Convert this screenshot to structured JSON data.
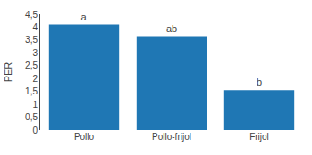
{
  "chart_data": {
    "type": "bar",
    "categories": [
      "Pollo",
      "Pollo-frijol",
      "Frijol"
    ],
    "values": [
      4.1,
      3.65,
      1.55
    ],
    "annotations": [
      "a",
      "ab",
      "b"
    ],
    "ylabel": "PER",
    "ylim": [
      0,
      4.5
    ],
    "yticks": [
      0,
      {
        "value": 0.5,
        "label": "0,5"
      },
      1,
      {
        "value": 1.5,
        "label": "1,5"
      },
      2,
      {
        "value": 2.5,
        "label": "2,5"
      },
      3,
      {
        "value": 3.5,
        "label": "3,5"
      },
      4,
      {
        "value": 4.5,
        "label": "4,5"
      }
    ],
    "grid": false
  }
}
